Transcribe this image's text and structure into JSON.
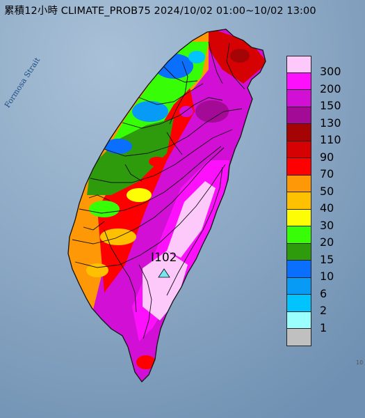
{
  "title": "累積12小時 CLIMATE_PROB75 2024/10/02 01:00~10/02 13:00",
  "strait_label": "Formosa Strait",
  "station": {
    "label": "I102",
    "marker": "triangle-marker",
    "color": "#77e6f0"
  },
  "corner_mark": "10",
  "legend": {
    "items": [
      {
        "label": "300",
        "color": "#fdc9fb"
      },
      {
        "label": "200",
        "color": "#fd11fd"
      },
      {
        "label": "150",
        "color": "#d20fd5"
      },
      {
        "label": "130",
        "color": "#a30b96"
      },
      {
        "label": "110",
        "color": "#a50405"
      },
      {
        "label": "90",
        "color": "#d50102"
      },
      {
        "label": "70",
        "color": "#fe0000"
      },
      {
        "label": "50",
        "color": "#fe9807"
      },
      {
        "label": "40",
        "color": "#fec102"
      },
      {
        "label": "30",
        "color": "#fdfe05"
      },
      {
        "label": "20",
        "color": "#37fd07"
      },
      {
        "label": "15",
        "color": "#2e9b0d"
      },
      {
        "label": "10",
        "color": "#0a6ffc"
      },
      {
        "label": "6",
        "color": "#079bf6"
      },
      {
        "label": "2",
        "color": "#01c4fe"
      },
      {
        "label": "1",
        "color": "#9afffd"
      },
      {
        "label": "",
        "color": "#c0c0c0"
      }
    ]
  },
  "colors": {
    "sea": "#7f9fbd",
    "boundary": "#111111"
  }
}
